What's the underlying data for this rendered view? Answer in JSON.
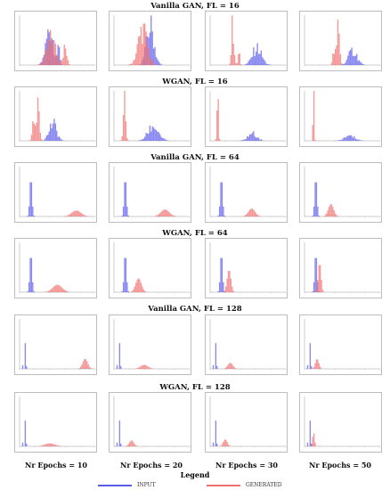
{
  "figure": {
    "row_titles": [
      "Vanilla GAN, FL = 16",
      "WGAN, FL = 16",
      "Vanilla GAN, FL = 64",
      "WGAN, FL = 64",
      "Vanilla GAN, FL = 128",
      "WGAN, FL = 128"
    ],
    "column_labels": [
      "Nr Epochs = 10",
      "Nr Epochs = 20",
      "Nr Epochs = 30",
      "Nr Epochs = 50"
    ],
    "legend": {
      "title": "Legend",
      "items": [
        {
          "label": "INPUT",
          "color": "#5b5bea"
        },
        {
          "label": "GENERATED",
          "color": "#f07070"
        }
      ]
    }
  },
  "chart_data": [
    {
      "type": "histogram",
      "row": 0,
      "col": 0,
      "series": [
        {
          "name": "INPUT",
          "components": [
            {
              "center": 100,
              "width": 25,
              "height": 0.75
            },
            {
              "center": 130,
              "width": 8,
              "height": 0.3
            }
          ]
        },
        {
          "name": "GENERATED",
          "components": [
            {
              "center": 105,
              "width": 30,
              "height": 0.55
            },
            {
              "center": 150,
              "width": 12,
              "height": 0.35
            }
          ]
        }
      ]
    },
    {
      "type": "histogram",
      "row": 0,
      "col": 1,
      "series": [
        {
          "name": "INPUT",
          "components": [
            {
              "center": 120,
              "width": 25,
              "height": 0.8
            }
          ]
        },
        {
          "name": "GENERATED",
          "components": [
            {
              "center": 95,
              "width": 30,
              "height": 0.75
            }
          ]
        }
      ]
    },
    {
      "type": "histogram",
      "row": 0,
      "col": 2,
      "series": [
        {
          "name": "INPUT",
          "components": [
            {
              "center": 155,
              "width": 30,
              "height": 0.35
            }
          ]
        },
        {
          "name": "GENERATED",
          "components": [
            {
              "center": 75,
              "width": 8,
              "height": 0.85
            },
            {
              "center": 95,
              "width": 6,
              "height": 0.3
            }
          ]
        }
      ]
    },
    {
      "type": "histogram",
      "row": 0,
      "col": 3,
      "series": [
        {
          "name": "INPUT",
          "components": [
            {
              "center": 160,
              "width": 28,
              "height": 0.3
            }
          ]
        },
        {
          "name": "GENERATED",
          "components": [
            {
              "center": 110,
              "width": 10,
              "height": 0.9
            },
            {
              "center": 95,
              "width": 6,
              "height": 0.4
            }
          ]
        }
      ]
    },
    {
      "type": "histogram",
      "row": 1,
      "col": 0,
      "series": [
        {
          "name": "INPUT",
          "components": [
            {
              "center": 110,
              "width": 25,
              "height": 0.35
            }
          ]
        },
        {
          "name": "GENERATED",
          "components": [
            {
              "center": 60,
              "width": 10,
              "height": 0.85
            },
            {
              "center": 45,
              "width": 8,
              "height": 0.3
            }
          ]
        }
      ]
    },
    {
      "type": "histogram",
      "row": 1,
      "col": 1,
      "series": [
        {
          "name": "INPUT",
          "components": [
            {
              "center": 130,
              "width": 35,
              "height": 0.3
            }
          ]
        },
        {
          "name": "GENERATED",
          "components": [
            {
              "center": 35,
              "width": 8,
              "height": 0.85
            }
          ]
        }
      ]
    },
    {
      "type": "histogram",
      "row": 1,
      "col": 2,
      "series": [
        {
          "name": "INPUT",
          "components": [
            {
              "center": 140,
              "width": 30,
              "height": 0.15
            }
          ]
        },
        {
          "name": "GENERATED",
          "components": [
            {
              "center": 25,
              "width": 5,
              "height": 0.9
            }
          ]
        }
      ]
    },
    {
      "type": "histogram",
      "row": 1,
      "col": 3,
      "series": [
        {
          "name": "INPUT",
          "components": [
            {
              "center": 150,
              "width": 35,
              "height": 0.1
            }
          ]
        },
        {
          "name": "GENERATED",
          "components": [
            {
              "center": 30,
              "width": 4,
              "height": 0.9
            }
          ]
        }
      ]
    },
    {
      "type": "histogram",
      "row": 2,
      "col": 0,
      "series": [
        {
          "name": "INPUT",
          "components": [
            {
              "center": 600,
              "width": 120,
              "height": 0.8
            }
          ]
        },
        {
          "name": "GENERATED",
          "components": [
            {
              "center": 3000,
              "width": 500,
              "height": 0.12
            }
          ]
        }
      ]
    },
    {
      "type": "histogram",
      "row": 2,
      "col": 1,
      "series": [
        {
          "name": "INPUT",
          "components": [
            {
              "center": 600,
              "width": 120,
              "height": 0.8
            }
          ]
        },
        {
          "name": "GENERATED",
          "components": [
            {
              "center": 2700,
              "width": 450,
              "height": 0.14
            }
          ]
        }
      ]
    },
    {
      "type": "histogram",
      "row": 2,
      "col": 2,
      "series": [
        {
          "name": "INPUT",
          "components": [
            {
              "center": 600,
              "width": 120,
              "height": 0.8
            }
          ]
        },
        {
          "name": "GENERATED",
          "components": [
            {
              "center": 2200,
              "width": 350,
              "height": 0.16
            }
          ]
        }
      ]
    },
    {
      "type": "histogram",
      "row": 2,
      "col": 3,
      "series": [
        {
          "name": "INPUT",
          "components": [
            {
              "center": 600,
              "width": 120,
              "height": 0.8
            }
          ]
        },
        {
          "name": "GENERATED",
          "components": [
            {
              "center": 1400,
              "width": 280,
              "height": 0.25
            }
          ]
        }
      ]
    },
    {
      "type": "histogram",
      "row": 3,
      "col": 0,
      "series": [
        {
          "name": "INPUT",
          "components": [
            {
              "center": 600,
              "width": 120,
              "height": 0.8
            }
          ]
        },
        {
          "name": "GENERATED",
          "components": [
            {
              "center": 2000,
              "width": 500,
              "height": 0.15
            }
          ]
        }
      ]
    },
    {
      "type": "histogram",
      "row": 3,
      "col": 1,
      "series": [
        {
          "name": "INPUT",
          "components": [
            {
              "center": 600,
              "width": 120,
              "height": 0.8
            }
          ]
        },
        {
          "name": "GENERATED",
          "components": [
            {
              "center": 1300,
              "width": 300,
              "height": 0.28
            }
          ]
        }
      ]
    },
    {
      "type": "histogram",
      "row": 3,
      "col": 2,
      "series": [
        {
          "name": "INPUT",
          "components": [
            {
              "center": 600,
              "width": 120,
              "height": 0.8
            }
          ]
        },
        {
          "name": "GENERATED",
          "components": [
            {
              "center": 1000,
              "width": 200,
              "height": 0.45
            }
          ]
        }
      ]
    },
    {
      "type": "histogram",
      "row": 3,
      "col": 3,
      "series": [
        {
          "name": "INPUT",
          "components": [
            {
              "center": 600,
              "width": 120,
              "height": 0.8
            }
          ]
        },
        {
          "name": "GENERATED",
          "components": [
            {
              "center": 800,
              "width": 150,
              "height": 0.6
            }
          ]
        }
      ]
    },
    {
      "type": "histogram",
      "row": 4,
      "col": 0,
      "series": [
        {
          "name": "INPUT",
          "components": [
            {
              "center": 1200,
              "width": 150,
              "height": 0.85
            },
            {
              "center": 700,
              "width": 90,
              "height": 0.3
            }
          ]
        },
        {
          "name": "GENERATED",
          "components": [
            {
              "center": 13000,
              "width": 1000,
              "height": 0.2
            }
          ]
        }
      ]
    },
    {
      "type": "histogram",
      "row": 4,
      "col": 1,
      "series": [
        {
          "name": "INPUT",
          "components": [
            {
              "center": 1200,
              "width": 150,
              "height": 0.85
            },
            {
              "center": 700,
              "width": 90,
              "height": 0.3
            }
          ]
        },
        {
          "name": "GENERATED",
          "components": [
            {
              "center": 6000,
              "width": 1500,
              "height": 0.08
            }
          ]
        }
      ]
    },
    {
      "type": "histogram",
      "row": 4,
      "col": 2,
      "series": [
        {
          "name": "INPUT",
          "components": [
            {
              "center": 1200,
              "width": 150,
              "height": 0.85
            },
            {
              "center": 700,
              "width": 90,
              "height": 0.3
            }
          ]
        },
        {
          "name": "GENERATED",
          "components": [
            {
              "center": 4000,
              "width": 1000,
              "height": 0.12
            }
          ]
        }
      ]
    },
    {
      "type": "histogram",
      "row": 4,
      "col": 3,
      "series": [
        {
          "name": "INPUT",
          "components": [
            {
              "center": 1200,
              "width": 150,
              "height": 0.85
            },
            {
              "center": 700,
              "width": 90,
              "height": 0.3
            }
          ]
        },
        {
          "name": "GENERATED",
          "components": [
            {
              "center": 2500,
              "width": 700,
              "height": 0.2
            }
          ]
        }
      ]
    },
    {
      "type": "histogram",
      "row": 5,
      "col": 0,
      "series": [
        {
          "name": "INPUT",
          "components": [
            {
              "center": 1200,
              "width": 150,
              "height": 0.85
            },
            {
              "center": 700,
              "width": 90,
              "height": 0.3
            }
          ]
        },
        {
          "name": "GENERATED",
          "components": [
            {
              "center": 6000,
              "width": 2000,
              "height": 0.06
            }
          ]
        }
      ]
    },
    {
      "type": "histogram",
      "row": 5,
      "col": 1,
      "series": [
        {
          "name": "INPUT",
          "components": [
            {
              "center": 1200,
              "width": 150,
              "height": 0.85
            },
            {
              "center": 700,
              "width": 90,
              "height": 0.3
            }
          ]
        },
        {
          "name": "GENERATED",
          "components": [
            {
              "center": 3500,
              "width": 900,
              "height": 0.12
            }
          ]
        }
      ]
    },
    {
      "type": "histogram",
      "row": 5,
      "col": 2,
      "series": [
        {
          "name": "INPUT",
          "components": [
            {
              "center": 1200,
              "width": 150,
              "height": 0.85
            },
            {
              "center": 700,
              "width": 90,
              "height": 0.3
            }
          ]
        },
        {
          "name": "GENERATED",
          "components": [
            {
              "center": 3000,
              "width": 800,
              "height": 0.14
            }
          ]
        }
      ]
    },
    {
      "type": "histogram",
      "row": 5,
      "col": 3,
      "series": [
        {
          "name": "INPUT",
          "components": [
            {
              "center": 1200,
              "width": 150,
              "height": 0.85
            },
            {
              "center": 700,
              "width": 90,
              "height": 0.3
            }
          ]
        },
        {
          "name": "GENERATED",
          "components": [
            {
              "center": 1800,
              "width": 400,
              "height": 0.28
            }
          ]
        }
      ]
    }
  ]
}
